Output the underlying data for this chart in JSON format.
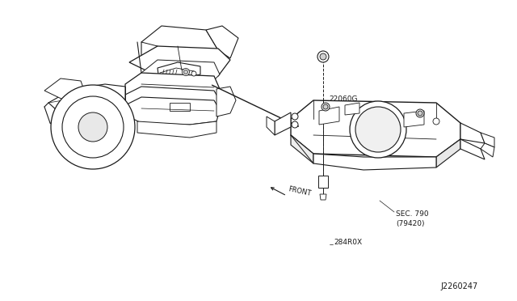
{
  "bg_color": "#ffffff",
  "label_22060G": "22060G",
  "label_284R0X": "284R0X",
  "label_SEC790": "SEC. 790\n(79420)",
  "label_FRONT": "FRONT",
  "label_J2260247": "J2260247",
  "line_color": "#1a1a1a",
  "text_color": "#1a1a1a",
  "font_size_labels": 6.5,
  "font_size_id": 7.0
}
